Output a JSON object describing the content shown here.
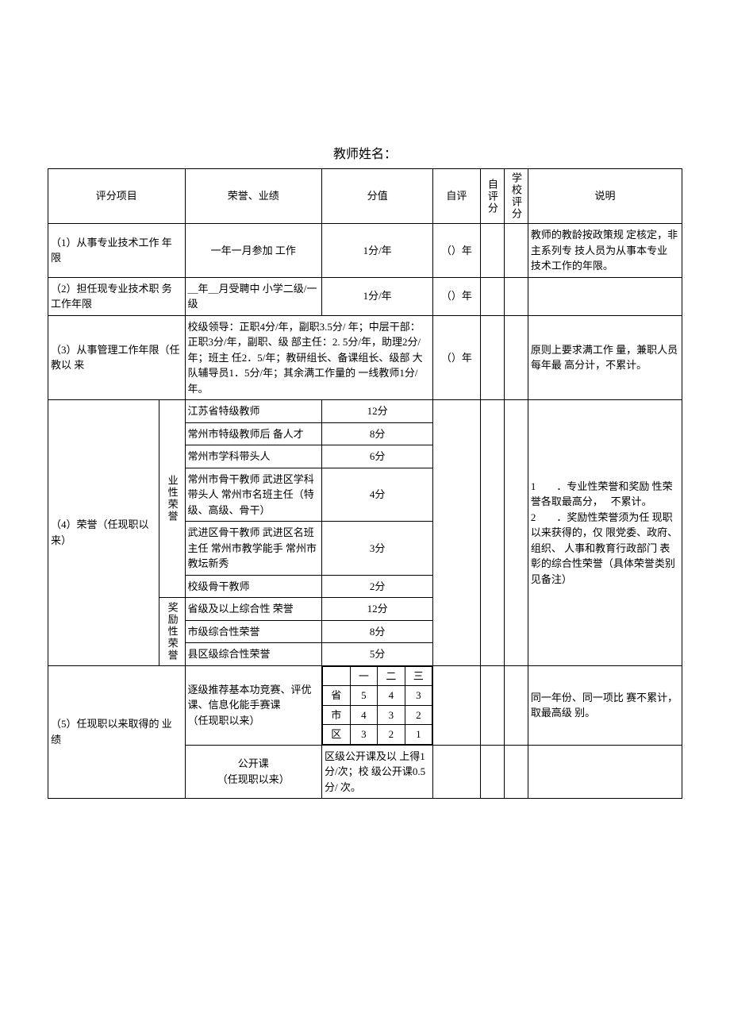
{
  "title": "教师姓名：",
  "headers": {
    "item": "评分项目",
    "honor": "荣誉、业绩",
    "score": "分值",
    "self": "自评",
    "selfscore": "自评分",
    "schoolscore": "学校评分",
    "desc": "说明"
  },
  "row1": {
    "item": "（1）从事专业技术工作 年限",
    "honor": "一年一月参加 工作",
    "score": "1分/年",
    "self": "（）年",
    "desc": "教师的教龄按政策规 定核定，非主系列专 技人员为从事本专业 技术工作的年限。"
  },
  "row2": {
    "item": "（2）担任现专业技术职 务工作年限",
    "honor": "＿年＿月受聘中 小学二级/一级",
    "score": "1分/年",
    "self": "（）年",
    "desc": ""
  },
  "row3": {
    "item": "（3）从事管理工作年限（任教以 来",
    "honor": "校级领导：正职4分/年，副职3.5分/ 年；中层干部：正职3分/年，副职、级 部主任：2. 5分/年，助理2分/年；班主 任2．5/年；教研组长、备课组长、级部 大队辅导员1．5分/年；其余满工作量的 一线教师1分/年。",
    "self": "（）年",
    "desc": "原则上要求满工作 量，兼职人员每年最 高分计，不累计。"
  },
  "row4": {
    "item": "（4）荣誉（任现职以来）",
    "sub1": "业性荣誉",
    "sub2": "奖励性荣誉",
    "h1": "江苏省特级教师",
    "s1": "12分",
    "h2": "常州市特级教师后 备人才",
    "s2": "8分",
    "h3": "常州市学科带头人",
    "s3": "6分",
    "h4": "常州市骨干教师 武进区学科带头人 常州市名班主任（特 级、高级、骨干）",
    "s4": "4分",
    "h5": "武进区骨干教师 武进区名班主任 常州市教学能手 常州市教坛新秀",
    "s5": "3分",
    "h6": "校级骨干教师",
    "s6": "2分",
    "h7": "省级及以上综合性 荣誉",
    "s7": "12分",
    "h8": "市级综合性荣誉",
    "s8": "8分",
    "h9": "县区级综合性荣誉",
    "s9": "5分",
    "desc": "1　　．专业性荣誉和奖励 性荣誉各取最高分，　 不累计。\n2　　．奖励性荣誉须为任 现职以来获得的，仅 限党委、政府、组织、 人事和教育行政部门 表彰的综合性荣誉（具体荣誉类别见备注）"
  },
  "row5": {
    "item": "（5）任现职以来取得的 业绩",
    "h1": "逐级推荐基本功竞赛、评优课、信息化能手赛课\n（任现职以来）",
    "grid": {
      "cols": [
        "",
        "一",
        "二",
        "三"
      ],
      "rows": [
        [
          "省",
          "5",
          "4",
          "3"
        ],
        [
          "市",
          "4",
          "3",
          "2"
        ],
        [
          "区",
          "3",
          "2",
          "1"
        ]
      ]
    },
    "desc": "同一年份、同一项比 赛不累计，取最高级 别。",
    "h2": "公开课\n（任现职以来）",
    "s2": "区级公开课及以 上得1分/次；校 级公开课0.5分/ 次。"
  }
}
